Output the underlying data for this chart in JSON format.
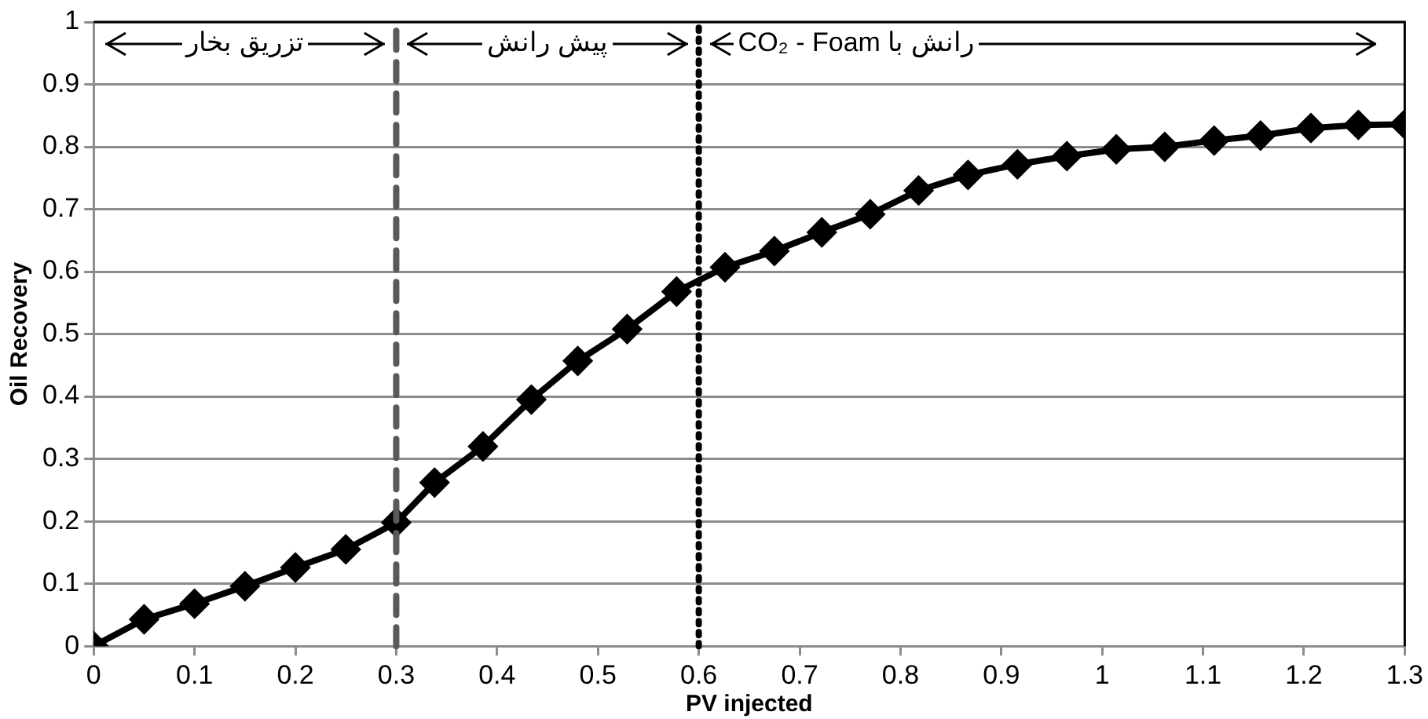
{
  "chart_data": {
    "type": "line",
    "xlabel": "PV injected",
    "ylabel": "Oil Recovery",
    "x": [
      0,
      0.05,
      0.1,
      0.15,
      0.2,
      0.25,
      0.3,
      0.338,
      0.386,
      0.434,
      0.48,
      0.529,
      0.578,
      0.626,
      0.675,
      0.722,
      0.77,
      0.818,
      0.867,
      0.916,
      0.965,
      1.014,
      1.062,
      1.111,
      1.157,
      1.207,
      1.254,
      1.3
    ],
    "series": [
      {
        "color": "#000000",
        "values": [
          0,
          0.043,
          0.068,
          0.096,
          0.126,
          0.155,
          0.198,
          0.262,
          0.32,
          0.395,
          0.457,
          0.508,
          0.568,
          0.607,
          0.633,
          0.663,
          0.692,
          0.73,
          0.755,
          0.772,
          0.785,
          0.796,
          0.8,
          0.81,
          0.818,
          0.83,
          0.835,
          0.836
        ]
      }
    ],
    "xlim": [
      0,
      1.3
    ],
    "xticks": [
      0,
      0.1,
      0.2,
      0.3,
      0.4,
      0.5,
      0.6,
      0.7,
      0.8,
      0.9,
      1,
      1.1,
      1.2,
      1.3
    ],
    "ylim": [
      0,
      1
    ],
    "yticks": [
      0,
      0.1,
      0.2,
      0.3,
      0.4,
      0.5,
      0.6,
      0.7,
      0.8,
      0.9,
      1
    ],
    "grid": "y",
    "marker": "diamond",
    "line_style": "solid",
    "legend": false,
    "ref_lines": [
      {
        "axis": "x",
        "value": 0.3,
        "color": "#595959",
        "line_style": "dashed"
      },
      {
        "axis": "x",
        "value": 0.6,
        "color": "#000000",
        "line_style": "dotted"
      }
    ],
    "annotations": [
      "تزریق بخار",
      "پیش رانش",
      "رانش با CO₂ - Foam"
    ]
  }
}
